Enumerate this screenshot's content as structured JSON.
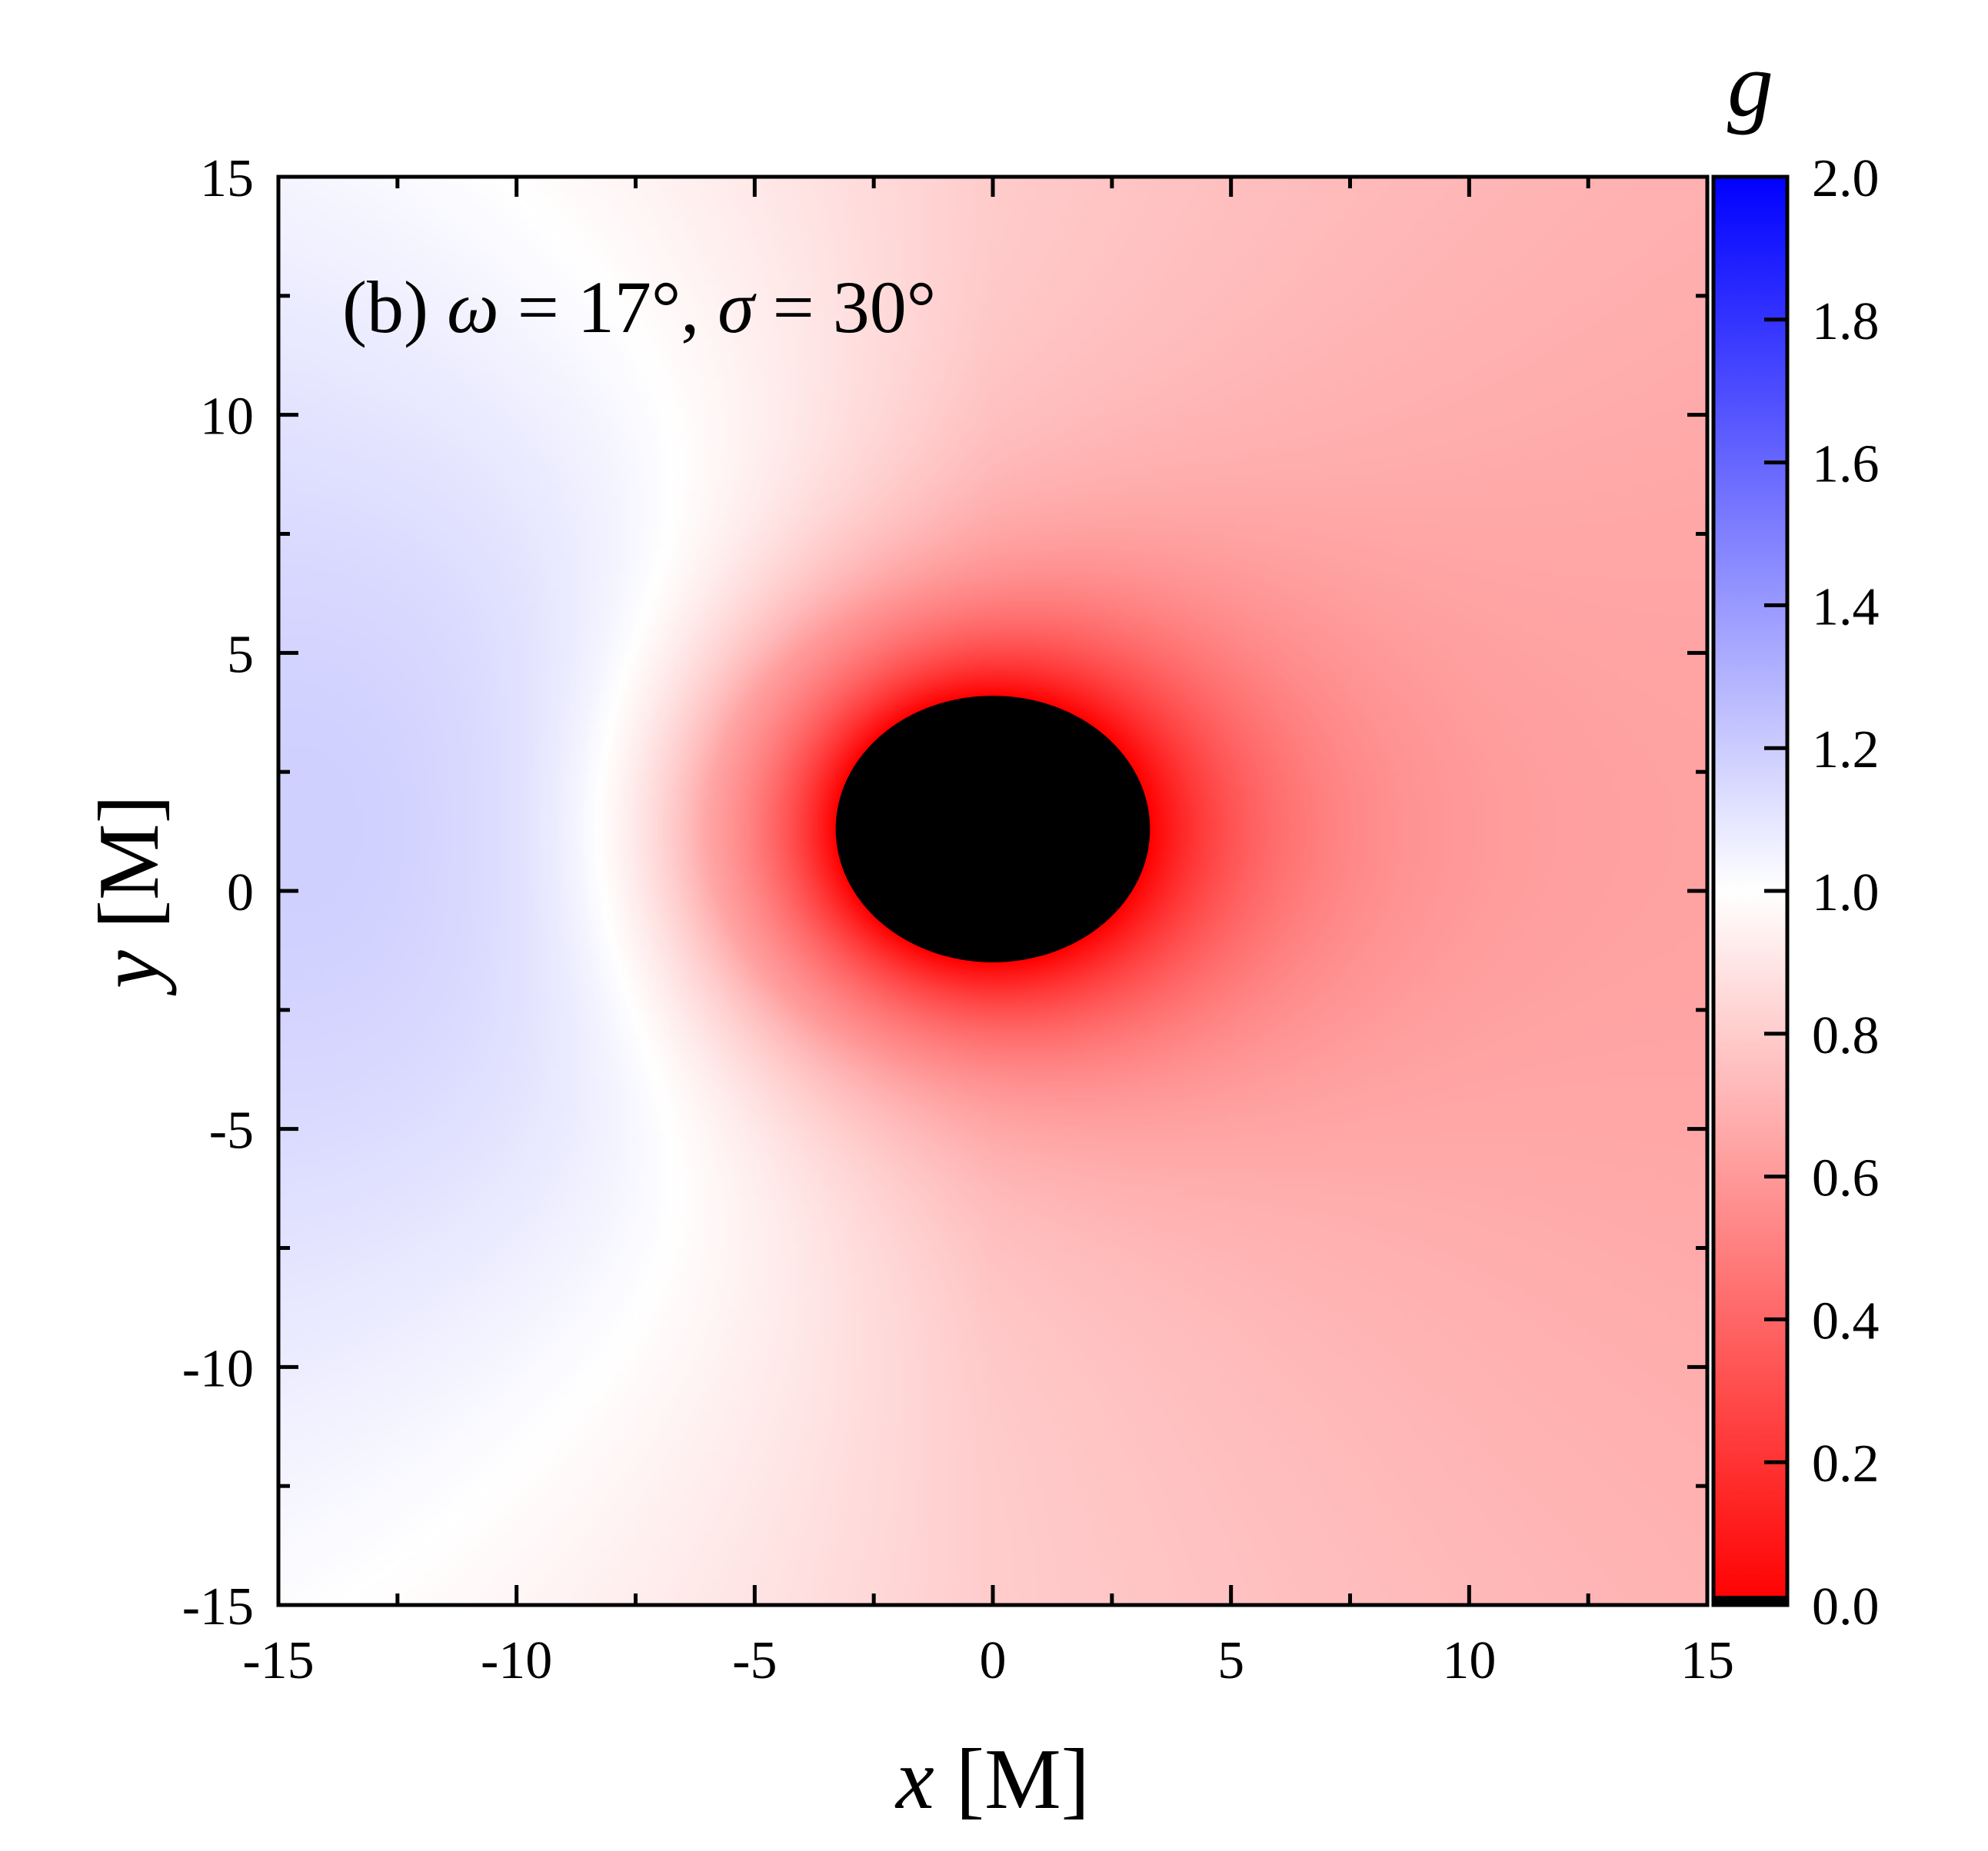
{
  "chart_data": {
    "type": "heatmap",
    "annotation": {
      "prefix": "(b) ",
      "omega_symbol": "ω",
      "omega_rest": " = 17°, ",
      "sigma_symbol": "σ",
      "sigma_rest": " = 30°"
    },
    "xaxis": {
      "var": "x",
      "unit": " [M]",
      "range": [
        -15,
        15
      ],
      "ticks": [
        -15,
        -10,
        -5,
        0,
        5,
        10,
        15
      ],
      "tick_labels": [
        "-15",
        "-10",
        "-5",
        "0",
        "5",
        "10",
        "15"
      ],
      "minor_step": 2.5
    },
    "yaxis": {
      "var": "y",
      "unit": " [M]",
      "range": [
        -15,
        15
      ],
      "ticks": [
        -15,
        -10,
        -5,
        0,
        5,
        10,
        15
      ],
      "tick_labels": [
        "-15",
        "-10",
        "-5",
        "0",
        "5",
        "10",
        "15"
      ],
      "minor_step": 2.5
    },
    "colorbar": {
      "title": "g",
      "range": [
        0.0,
        2.0
      ],
      "ticks": [
        0.0,
        0.2,
        0.4,
        0.6,
        0.8,
        1.0,
        1.2,
        1.4,
        1.6,
        1.8,
        2.0
      ],
      "tick_labels": [
        "0.0",
        "0.2",
        "0.4",
        "0.6",
        "0.8",
        "1.0",
        "1.2",
        "1.4",
        "1.6",
        "1.8",
        "2.0"
      ],
      "colors": {
        "low": "#ff0000",
        "mid": "#ffffff",
        "high": "#0000ff"
      }
    },
    "shadow": {
      "center": [
        0.0,
        1.3
      ],
      "semi_axes": [
        3.3,
        2.8
      ],
      "color": "#000000"
    },
    "field_samples": [
      {
        "x": -15,
        "y": 2.5,
        "g": 1.05
      },
      {
        "x": -10,
        "y": 2.0,
        "g": 0.98
      },
      {
        "x": -5,
        "y": 1.3,
        "g": 0.82
      },
      {
        "x": 0,
        "y": -5,
        "g": 0.45
      },
      {
        "x": 5,
        "y": 1.3,
        "g": 0.42
      },
      {
        "x": 10,
        "y": 1.3,
        "g": 0.62
      },
      {
        "x": 15,
        "y": 1.3,
        "g": 0.66
      },
      {
        "x": 15,
        "y": -15,
        "g": 0.72
      },
      {
        "x": -15,
        "y": -15,
        "g": 0.9
      }
    ]
  }
}
